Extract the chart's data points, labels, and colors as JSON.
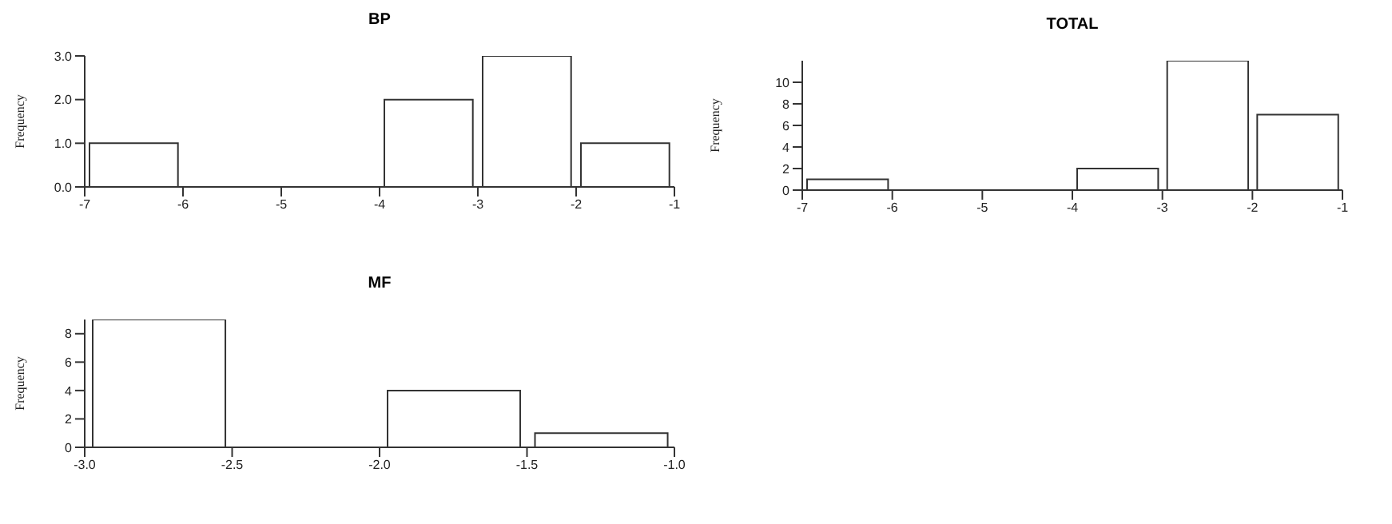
{
  "chart_data": [
    {
      "type": "histogram",
      "title": "BP",
      "ylabel": "Frequency",
      "color": "#ffffff",
      "bins": [
        -7,
        -6,
        -5,
        -4,
        -3,
        -2,
        -1
      ],
      "values": [
        1,
        0,
        0,
        2,
        3,
        1
      ],
      "xlim": [
        -7,
        -1
      ],
      "xticks": [
        -7,
        -6,
        -5,
        -4,
        -3,
        -2,
        -1
      ],
      "ylim": [
        0,
        3
      ],
      "yticks": [
        {
          "value": 0,
          "label": "0.0"
        },
        {
          "value": 1,
          "label": "1.0"
        },
        {
          "value": 2,
          "label": "2.0"
        },
        {
          "value": 3,
          "label": "3.0"
        }
      ]
    },
    {
      "type": "histogram",
      "title": "TOTAL",
      "ylabel": "Frequency",
      "color": "#ffffff",
      "bins": [
        -7,
        -6,
        -5,
        -4,
        -3,
        -2,
        -1
      ],
      "values": [
        1,
        0,
        0,
        2,
        12,
        7
      ],
      "xlim": [
        -7,
        -1
      ],
      "xticks": [
        -7,
        -6,
        -5,
        -4,
        -3,
        -2,
        -1
      ],
      "ylim": [
        0,
        12
      ],
      "yticks": [
        0,
        2,
        4,
        6,
        8,
        10
      ]
    },
    {
      "type": "histogram",
      "title": "MF",
      "ylabel": "Frequency",
      "color": "#ffffff",
      "bins": [
        -3,
        -2.5,
        -2,
        -1.5,
        -1
      ],
      "values": [
        9,
        0,
        4,
        1
      ],
      "xlim": [
        -3,
        -1
      ],
      "xticks": [
        {
          "value": -3,
          "label": "-3.0"
        },
        {
          "value": -2.5,
          "label": "-2.5"
        },
        {
          "value": -2,
          "label": "-2.0"
        },
        {
          "value": -1.5,
          "label": "-1.5"
        },
        {
          "value": -1,
          "label": "-1.0"
        }
      ],
      "ylim": [
        0,
        9
      ],
      "yticks": [
        0,
        2,
        4,
        6,
        8
      ]
    }
  ]
}
